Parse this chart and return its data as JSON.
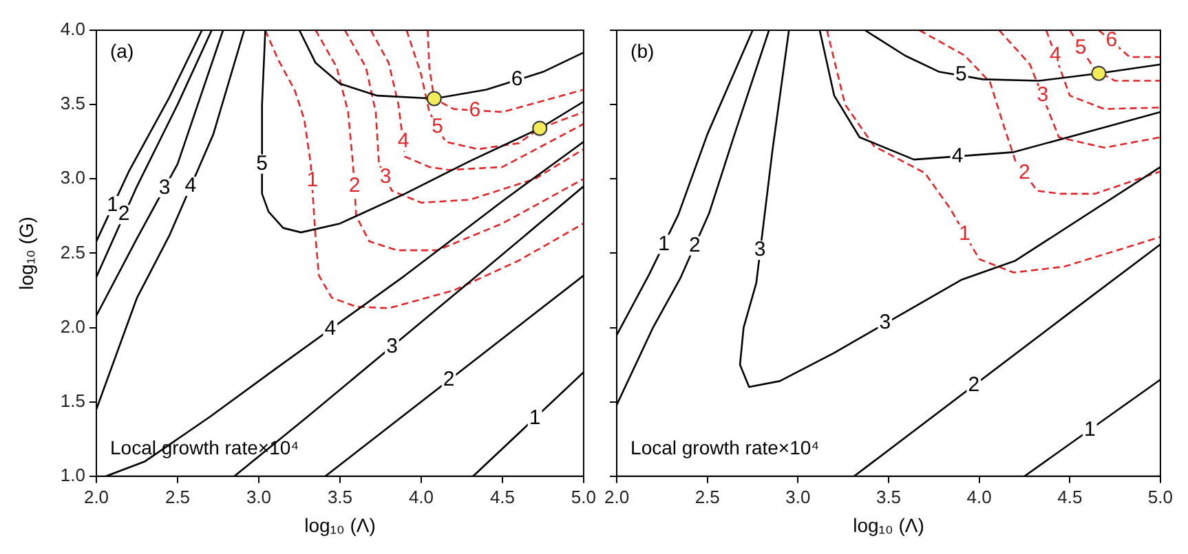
{
  "chart_data": [
    {
      "type": "line",
      "title": "(a)",
      "xlabel": "log₁₀ (Λ)",
      "ylabel": "log₁₀ (G)",
      "xlim": [
        2,
        5
      ],
      "ylim": [
        1,
        4
      ],
      "xticks": [
        {
          "value": 2,
          "label": "2.0"
        },
        {
          "value": 2.5,
          "label": "2.5"
        },
        {
          "value": 3,
          "label": "3.0"
        },
        {
          "value": 3.5,
          "label": "3.5"
        },
        {
          "value": 4,
          "label": "4.0"
        },
        {
          "value": 4.5,
          "label": "4.5"
        },
        {
          "value": 5,
          "label": "5.0"
        }
      ],
      "yticks": [
        {
          "value": 1,
          "label": "1.0"
        },
        {
          "value": 1.5,
          "label": "1.5"
        },
        {
          "value": 2,
          "label": "2.0"
        },
        {
          "value": 2.5,
          "label": "2.5"
        },
        {
          "value": 3,
          "label": "3.0"
        },
        {
          "value": 3.5,
          "label": "3.5"
        },
        {
          "value": 4,
          "label": "4.0"
        }
      ],
      "grid": false,
      "legend": false,
      "marker": "none",
      "line_style": "solid",
      "series": [
        {
          "color": "#000000",
          "x": [
            2.0,
            2.2,
            2.45,
            2.65
          ],
          "values": [
            2.58,
            3.05,
            3.55,
            4.0
          ]
        },
        {
          "color": "#000000",
          "x": [
            2.0,
            2.25,
            2.5,
            2.71
          ],
          "values": [
            2.34,
            2.95,
            3.5,
            4.0
          ]
        },
        {
          "color": "#000000",
          "x": [
            2.0,
            2.25,
            2.5,
            2.78
          ],
          "values": [
            2.08,
            2.6,
            3.1,
            4.0
          ]
        },
        {
          "color": "#000000",
          "x": [
            2.0,
            2.25,
            2.45,
            2.72,
            2.91
          ],
          "values": [
            1.45,
            2.2,
            2.62,
            3.3,
            4.0
          ]
        },
        {
          "color": "#000000",
          "x": [
            3.04,
            3.02,
            3.02,
            3.06,
            3.15,
            3.26,
            3.5,
            3.9,
            4.3,
            4.73,
            5.0
          ],
          "values": [
            4.0,
            3.5,
            2.9,
            2.78,
            2.67,
            2.64,
            2.7,
            2.9,
            3.12,
            3.34,
            3.52
          ]
        },
        {
          "color": "#000000",
          "x": [
            3.25,
            3.35,
            3.5,
            3.73,
            4.08,
            4.4,
            4.75,
            5.0
          ],
          "values": [
            4.0,
            3.78,
            3.64,
            3.56,
            3.54,
            3.6,
            3.72,
            3.85
          ]
        },
        {
          "color": "#000000",
          "x": [
            2.06,
            2.3,
            2.7,
            3.1,
            3.9,
            4.5,
            5.0
          ],
          "values": [
            1.0,
            1.1,
            1.4,
            1.72,
            2.35,
            2.85,
            3.25
          ]
        },
        {
          "color": "#000000",
          "x": [
            2.85,
            3.3,
            4.4,
            5.0
          ],
          "values": [
            1.0,
            1.4,
            2.4,
            2.95
          ]
        },
        {
          "color": "#000000",
          "x": [
            3.41,
            5.0
          ],
          "values": [
            1.0,
            2.35
          ]
        },
        {
          "color": "#000000",
          "x": [
            4.32,
            5.0
          ],
          "values": [
            1.0,
            1.7
          ]
        },
        {
          "color": "#e0262b",
          "line_style": "dashed",
          "x": [
            3.04,
            3.12,
            3.22,
            3.28,
            3.32,
            3.35,
            3.37,
            3.45,
            3.6,
            3.8,
            4.2,
            4.6,
            5.0
          ],
          "values": [
            4.0,
            3.8,
            3.6,
            3.4,
            3.1,
            2.6,
            2.35,
            2.2,
            2.14,
            2.13,
            2.25,
            2.45,
            2.7
          ]
        },
        {
          "color": "#e0262b",
          "line_style": "dashed",
          "x": [
            3.35,
            3.48,
            3.55,
            3.58,
            3.6,
            3.68,
            3.85,
            4.1,
            4.5,
            5.0
          ],
          "values": [
            4.0,
            3.75,
            3.45,
            3.1,
            2.75,
            2.58,
            2.52,
            2.52,
            2.7,
            3.0
          ]
        },
        {
          "color": "#e0262b",
          "line_style": "dashed",
          "x": [
            3.53,
            3.66,
            3.72,
            3.74,
            3.82,
            4.0,
            4.3,
            4.7,
            5.0
          ],
          "values": [
            4.0,
            3.75,
            3.45,
            3.1,
            2.92,
            2.84,
            2.86,
            3.0,
            3.2
          ]
        },
        {
          "color": "#e0262b",
          "line_style": "dashed",
          "x": [
            3.69,
            3.8,
            3.86,
            3.9,
            4.05,
            4.17,
            4.5,
            5.0
          ],
          "values": [
            4.0,
            3.78,
            3.5,
            3.15,
            3.08,
            3.06,
            3.08,
            3.37
          ]
        },
        {
          "color": "#e0262b",
          "line_style": "dashed",
          "x": [
            3.91,
            4.0,
            4.05,
            4.15,
            4.35,
            4.6,
            4.73,
            5.0
          ],
          "values": [
            4.0,
            3.7,
            3.45,
            3.25,
            3.2,
            3.24,
            3.34,
            3.45
          ]
        },
        {
          "color": "#e0262b",
          "line_style": "dashed",
          "x": [
            4.04,
            4.05,
            4.08,
            4.2,
            4.5,
            5.0
          ],
          "values": [
            4.0,
            3.75,
            3.54,
            3.47,
            3.45,
            3.6
          ]
        },
        {
          "type": "scatter",
          "marker": "circle",
          "color": "#f2ec5a",
          "x": [
            4.08,
            4.73
          ],
          "values": [
            3.54,
            3.34
          ]
        }
      ],
      "annotations": [
        "Local growth rate×10⁴",
        {
          "text": "1",
          "x": 2.1,
          "y": 2.82
        },
        {
          "text": "2",
          "x": 2.17,
          "y": 2.76
        },
        {
          "text": "3",
          "x": 2.42,
          "y": 2.94
        },
        {
          "text": "4",
          "x": 2.58,
          "y": 2.95
        },
        {
          "text": "5",
          "x": 3.02,
          "y": 3.1
        },
        {
          "text": "6",
          "x": 4.59,
          "y": 3.67
        },
        {
          "text": "4",
          "x": 3.44,
          "y": 1.99
        },
        {
          "text": "3",
          "x": 3.82,
          "y": 1.87
        },
        {
          "text": "2",
          "x": 4.17,
          "y": 1.65
        },
        {
          "text": "1",
          "x": 4.7,
          "y": 1.39
        },
        {
          "text": "1",
          "x": 3.33,
          "y": 2.99
        },
        {
          "text": "2",
          "x": 3.59,
          "y": 2.95
        },
        {
          "text": "3",
          "x": 3.78,
          "y": 3.01
        },
        {
          "text": "4",
          "x": 3.89,
          "y": 3.25
        },
        {
          "text": "5",
          "x": 4.1,
          "y": 3.35
        },
        {
          "text": "6",
          "x": 4.33,
          "y": 3.46
        }
      ]
    },
    {
      "type": "line",
      "title": "(b)",
      "xlabel": "log₁₀ (Λ)",
      "xlim": [
        2,
        5
      ],
      "ylim": [
        1,
        4
      ],
      "tick_labels": "x",
      "xticks": [
        {
          "value": 2,
          "label": "2.0"
        },
        {
          "value": 2.5,
          "label": "2.5"
        },
        {
          "value": 3,
          "label": "3.0"
        },
        {
          "value": 3.5,
          "label": "3.5"
        },
        {
          "value": 4,
          "label": "4.0"
        },
        {
          "value": 4.5,
          "label": "4.5"
        },
        {
          "value": 5,
          "label": "5.0"
        }
      ],
      "yticks": [
        {
          "value": 1,
          "label": null
        },
        {
          "value": 1.5,
          "label": null
        },
        {
          "value": 2,
          "label": null
        },
        {
          "value": 2.5,
          "label": null
        },
        {
          "value": 3,
          "label": null
        },
        {
          "value": 3.5,
          "label": null
        },
        {
          "value": 4,
          "label": null
        }
      ],
      "grid": false,
      "legend": false,
      "marker": "none",
      "line_style": "solid",
      "series": [
        {
          "color": "#000000",
          "x": [
            2.0,
            2.18,
            2.34,
            2.5,
            2.75
          ],
          "values": [
            1.95,
            2.36,
            2.76,
            3.3,
            4.0
          ]
        },
        {
          "color": "#000000",
          "x": [
            2.0,
            2.2,
            2.35,
            2.51,
            2.65,
            2.84
          ],
          "values": [
            1.48,
            2.0,
            2.33,
            2.77,
            3.3,
            4.0
          ]
        },
        {
          "color": "#000000",
          "x": [
            2.95,
            2.86,
            2.77,
            2.7,
            2.68,
            2.73,
            2.9,
            3.2,
            3.9,
            4.2,
            5.0
          ],
          "values": [
            4.0,
            3.2,
            2.3,
            2.0,
            1.75,
            1.6,
            1.64,
            1.83,
            2.32,
            2.45,
            3.08
          ]
        },
        {
          "color": "#000000",
          "x": [
            3.31,
            4.5,
            5.0
          ],
          "values": [
            1.0,
            2.1,
            2.56
          ]
        },
        {
          "color": "#000000",
          "x": [
            4.25,
            5.0
          ],
          "values": [
            1.0,
            1.65
          ]
        },
        {
          "color": "#000000",
          "x": [
            3.12,
            3.2,
            3.34,
            3.64,
            4.19,
            5.0
          ],
          "values": [
            4.0,
            3.56,
            3.28,
            3.13,
            3.18,
            3.45
          ]
        },
        {
          "color": "#000000",
          "x": [
            3.37,
            3.59,
            3.78,
            4.02,
            4.33,
            4.66,
            5.0
          ],
          "values": [
            4.0,
            3.83,
            3.72,
            3.67,
            3.66,
            3.71,
            3.77
          ]
        },
        {
          "color": "#e0262b",
          "line_style": "dashed",
          "x": [
            3.16,
            3.26,
            3.42,
            3.7,
            3.84,
            4.0,
            4.19,
            4.47,
            5.0
          ],
          "values": [
            4.0,
            3.5,
            3.22,
            3.04,
            2.8,
            2.46,
            2.37,
            2.41,
            2.61
          ]
        },
        {
          "color": "#e0262b",
          "line_style": "dashed",
          "x": [
            3.67,
            3.92,
            4.06,
            4.14,
            4.2,
            4.32,
            4.45,
            4.64,
            5.0
          ],
          "values": [
            4.0,
            3.83,
            3.65,
            3.34,
            3.12,
            2.92,
            2.9,
            2.9,
            3.05
          ]
        },
        {
          "color": "#e0262b",
          "line_style": "dashed",
          "x": [
            4.11,
            4.28,
            4.44,
            4.69,
            5.0
          ],
          "values": [
            4.0,
            3.77,
            3.28,
            3.21,
            3.28
          ]
        },
        {
          "color": "#e0262b",
          "line_style": "dashed",
          "x": [
            4.37,
            4.5,
            4.69,
            5.0
          ],
          "values": [
            4.0,
            3.56,
            3.47,
            3.48
          ]
        },
        {
          "color": "#e0262b",
          "line_style": "dashed",
          "x": [
            4.5,
            4.64,
            4.75,
            5.0
          ],
          "values": [
            4.0,
            3.73,
            3.66,
            3.66
          ]
        },
        {
          "color": "#e0262b",
          "line_style": "dashed",
          "x": [
            4.66,
            4.83,
            5.0
          ],
          "values": [
            4.0,
            3.82,
            3.82
          ]
        },
        {
          "type": "scatter",
          "marker": "circle",
          "color": "#f2ec5a",
          "x": [
            4.66
          ],
          "values": [
            3.71
          ]
        }
      ],
      "annotations": [
        "Local growth rate×10⁴",
        {
          "text": "1",
          "x": 2.26,
          "y": 2.56
        },
        {
          "text": "2",
          "x": 2.43,
          "y": 2.55
        },
        {
          "text": "3",
          "x": 2.79,
          "y": 2.52
        },
        {
          "text": "3",
          "x": 3.48,
          "y": 2.03
        },
        {
          "text": "2",
          "x": 3.97,
          "y": 1.61
        },
        {
          "text": "1",
          "x": 4.61,
          "y": 1.31
        },
        {
          "text": "4",
          "x": 3.88,
          "y": 3.15
        },
        {
          "text": "5",
          "x": 3.9,
          "y": 3.7
        },
        {
          "text": "1",
          "x": 3.92,
          "y": 2.63
        },
        {
          "text": "2",
          "x": 4.25,
          "y": 3.04
        },
        {
          "text": "3",
          "x": 4.35,
          "y": 3.56
        },
        {
          "text": "4",
          "x": 4.42,
          "y": 3.83
        },
        {
          "text": "5",
          "x": 4.56,
          "y": 3.88
        },
        {
          "text": "6",
          "x": 4.73,
          "y": 3.93
        }
      ]
    }
  ]
}
